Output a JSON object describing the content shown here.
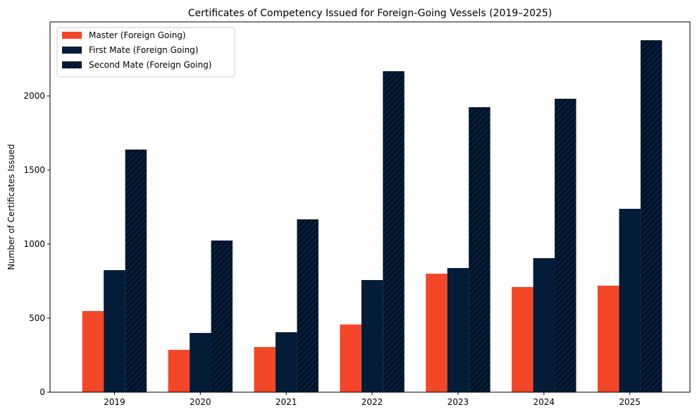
{
  "chart_data": {
    "type": "bar",
    "title": "Certificates of Competency Issued for Foreign-Going Vessels (2019–2025)",
    "xlabel": "",
    "ylabel": "Number of Certificates Issued",
    "categories": [
      "2019",
      "2020",
      "2021",
      "2022",
      "2023",
      "2024",
      "2025"
    ],
    "ylim": [
      0,
      2500
    ],
    "yticks": [
      0,
      500,
      1000,
      1500,
      2000
    ],
    "grid": false,
    "legend_placement": "top-left",
    "series": [
      {
        "name": "Master (Foreign Going)",
        "color": "#F44728",
        "hatch": false,
        "values": [
          548,
          286,
          305,
          457,
          800,
          710,
          719
        ]
      },
      {
        "name": "First Mate (Foreign Going)",
        "color": "#031D39",
        "hatch": false,
        "values": [
          824,
          400,
          405,
          757,
          838,
          905,
          1238
        ]
      },
      {
        "name": "Second Mate (Foreign Going)",
        "color": "#031D39",
        "hatch": true,
        "values": [
          1638,
          1024,
          1167,
          2167,
          1924,
          1981,
          2376
        ]
      }
    ]
  }
}
